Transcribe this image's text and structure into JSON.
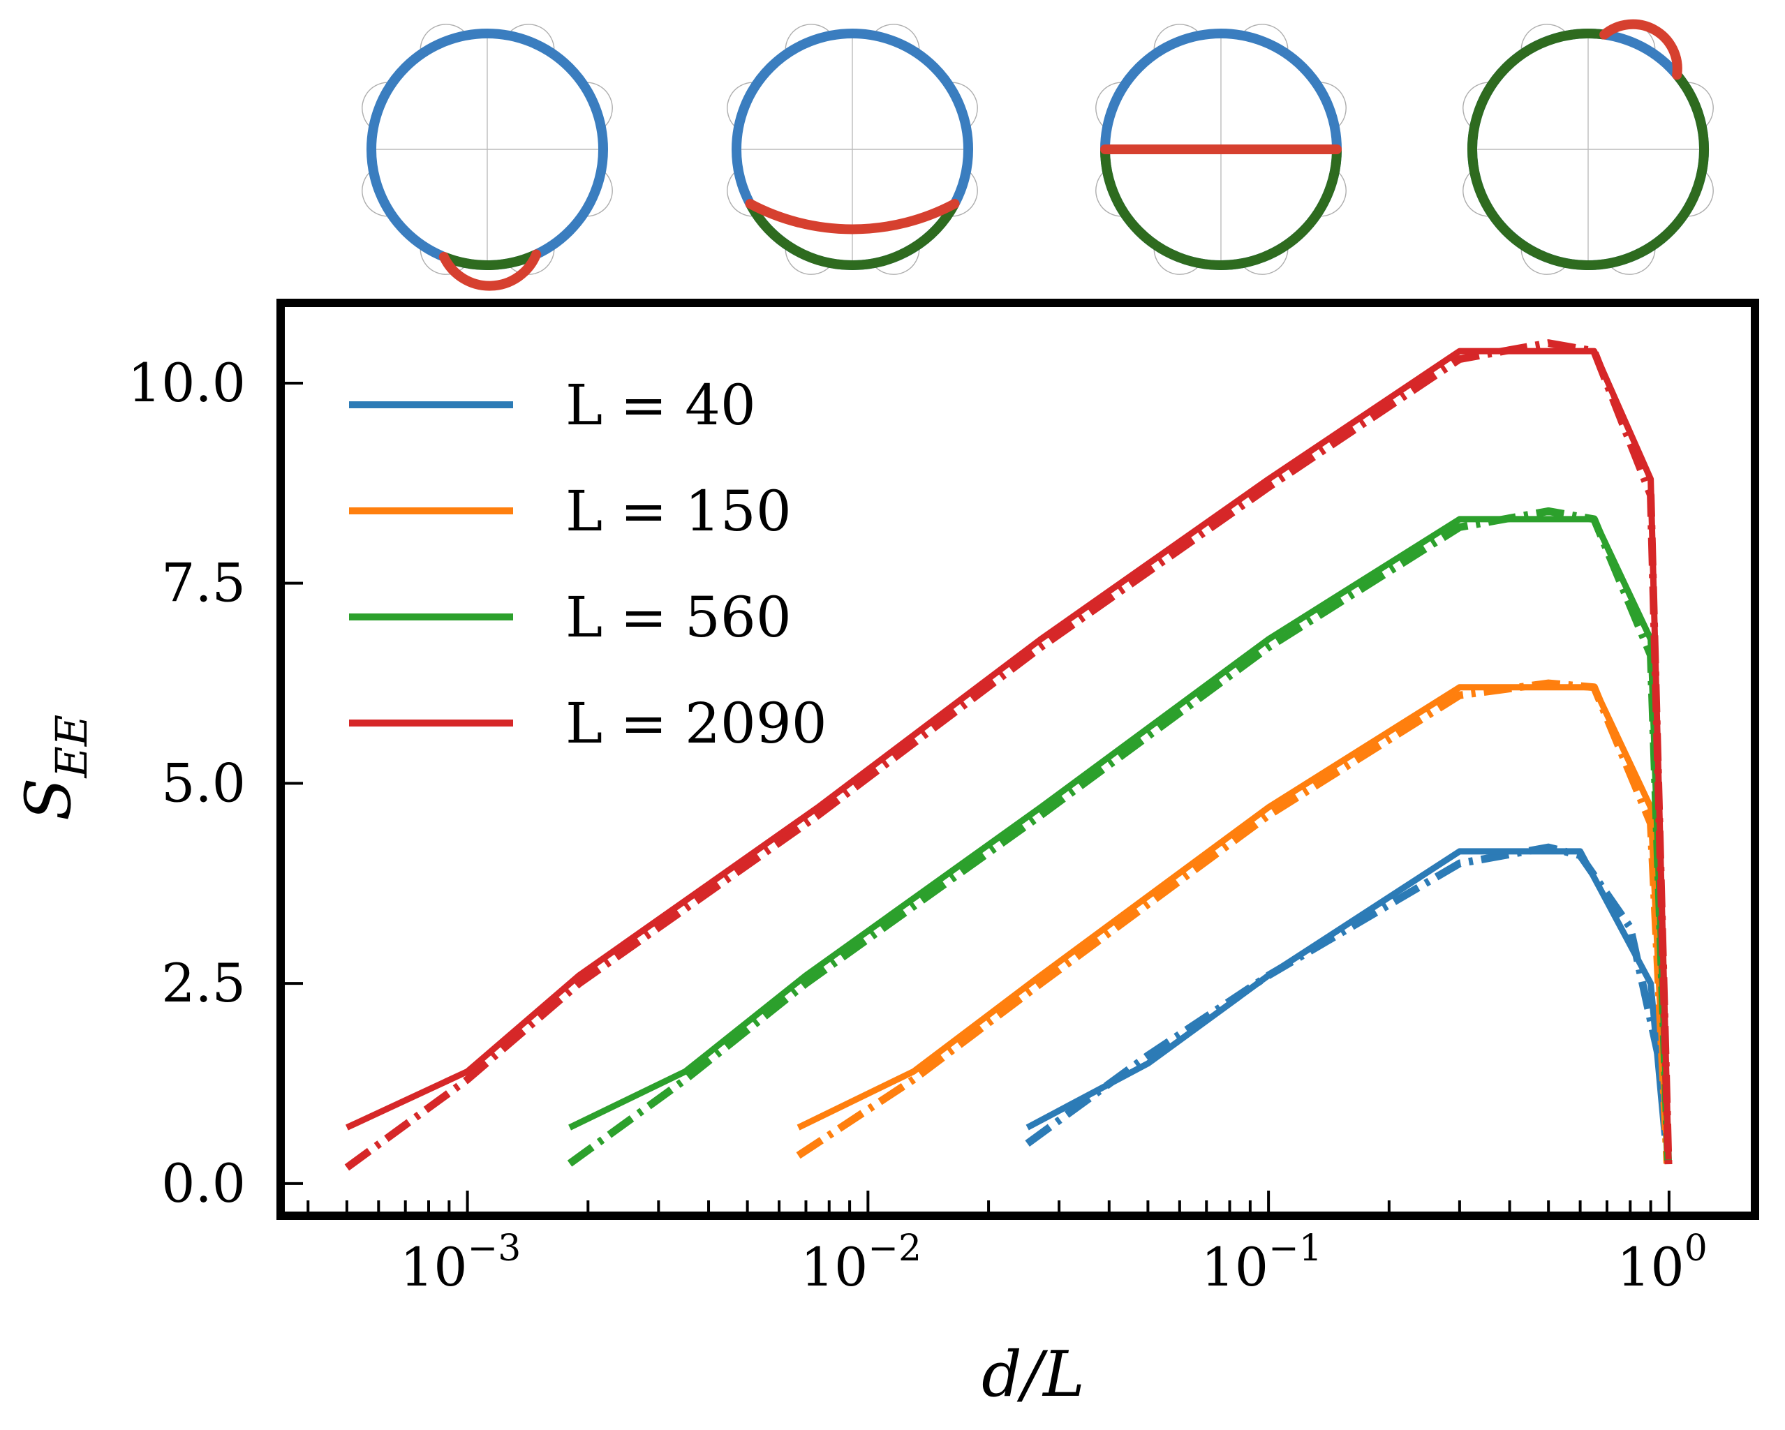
{
  "chart_data": {
    "type": "line",
    "xscale": "log",
    "xlabel": "d/L",
    "ylabel": "S_EE",
    "ylabel_main": "S",
    "ylabel_sub": "EE",
    "xlim": [
      0.00035,
      1.6
    ],
    "ylim": [
      -0.35,
      10.95
    ],
    "yticks": [
      0.0,
      2.5,
      5.0,
      7.5,
      10.0
    ],
    "ytick_labels": [
      "0.0",
      "2.5",
      "5.0",
      "7.5",
      "10.0"
    ],
    "xticks": [
      0.001,
      0.01,
      0.1,
      1
    ],
    "xtick_bases": [
      "10",
      "10",
      "10",
      "10"
    ],
    "xtick_exponents": [
      "−3",
      "−2",
      "−1",
      "0"
    ],
    "legend_position": "top-left",
    "series": [
      {
        "name": "L = 40",
        "color": "#2c7bb6",
        "x": [
          0.025,
          0.05,
          0.1,
          0.3,
          0.4,
          0.6,
          0.9,
          0.975
        ],
        "values": [
          0.7,
          1.5,
          2.6,
          4.15,
          4.15,
          4.15,
          2.5,
          0.6
        ],
        "fit_x": [
          0.025,
          0.05,
          0.1,
          0.3,
          0.5,
          0.6,
          0.8,
          0.95
        ],
        "fit_values": [
          0.5,
          1.6,
          2.6,
          4.0,
          4.2,
          4.1,
          3.2,
          1.5
        ]
      },
      {
        "name": "L = 150",
        "color": "#ff7f0e",
        "x": [
          0.0067,
          0.013,
          0.027,
          0.1,
          0.3,
          0.5,
          0.65,
          0.9,
          0.99
        ],
        "values": [
          0.7,
          1.4,
          2.6,
          4.7,
          6.2,
          6.2,
          6.2,
          4.7,
          0.3
        ],
        "fit_x": [
          0.0067,
          0.013,
          0.027,
          0.1,
          0.3,
          0.5,
          0.65,
          0.9,
          0.99
        ],
        "fit_values": [
          0.35,
          1.3,
          2.5,
          4.6,
          6.1,
          6.25,
          6.2,
          4.5,
          0.25
        ]
      },
      {
        "name": "L = 560",
        "color": "#2ca02c",
        "x": [
          0.0018,
          0.0035,
          0.007,
          0.027,
          0.1,
          0.3,
          0.5,
          0.65,
          0.9,
          0.995
        ],
        "values": [
          0.7,
          1.4,
          2.6,
          4.7,
          6.8,
          8.3,
          8.3,
          8.3,
          6.8,
          0.3
        ],
        "fit_x": [
          0.0018,
          0.0035,
          0.007,
          0.027,
          0.1,
          0.3,
          0.5,
          0.65,
          0.9,
          0.995
        ],
        "fit_values": [
          0.25,
          1.3,
          2.5,
          4.6,
          6.7,
          8.2,
          8.4,
          8.3,
          6.6,
          0.25
        ]
      },
      {
        "name": "L = 2090",
        "color": "#d62728",
        "x": [
          0.0005,
          0.001,
          0.0019,
          0.0075,
          0.027,
          0.1,
          0.3,
          0.5,
          0.65,
          0.9,
          0.997
        ],
        "values": [
          0.7,
          1.4,
          2.6,
          4.7,
          6.8,
          8.8,
          10.4,
          10.4,
          10.4,
          8.8,
          0.3
        ],
        "fit_x": [
          0.0005,
          0.001,
          0.0019,
          0.0075,
          0.027,
          0.1,
          0.3,
          0.5,
          0.65,
          0.9,
          0.997
        ],
        "fit_values": [
          0.2,
          1.3,
          2.5,
          4.6,
          6.7,
          8.7,
          10.3,
          10.5,
          10.4,
          8.6,
          0.2
        ]
      }
    ],
    "insets": [
      {
        "boundary_colors": [
          "#3a7dbf",
          "#2e6b1f"
        ],
        "cut_color": "#d6402f",
        "cut_type": "small-arc-bottom"
      },
      {
        "boundary_colors": [
          "#3a7dbf",
          "#2e6b1f"
        ],
        "cut_color": "#d6402f",
        "cut_type": "wide-arc-bottom"
      },
      {
        "boundary_colors": [
          "#3a7dbf",
          "#2e6b1f"
        ],
        "cut_color": "#d6402f",
        "cut_type": "diameter"
      },
      {
        "boundary_colors": [
          "#3a7dbf",
          "#2e6b1f"
        ],
        "cut_color": "#d6402f",
        "cut_type": "small-arc-top-right"
      }
    ]
  }
}
